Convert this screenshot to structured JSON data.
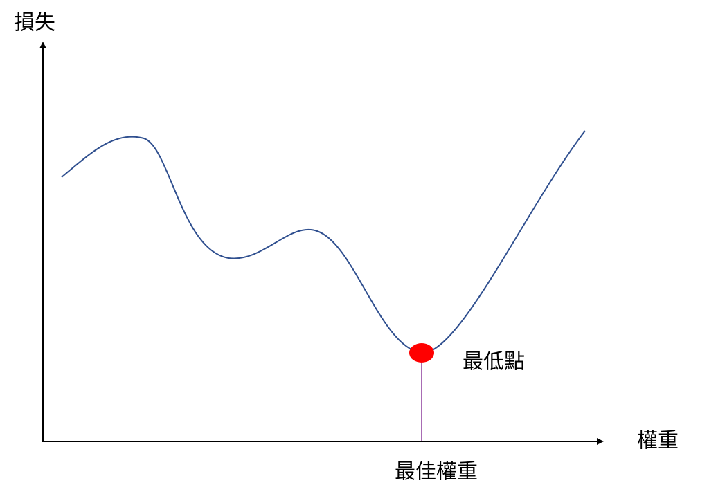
{
  "y_axis_label": "損失",
  "x_axis_label": "權重",
  "minimum_label": "最低點",
  "optimal_weight_label": "最佳權重"
}
